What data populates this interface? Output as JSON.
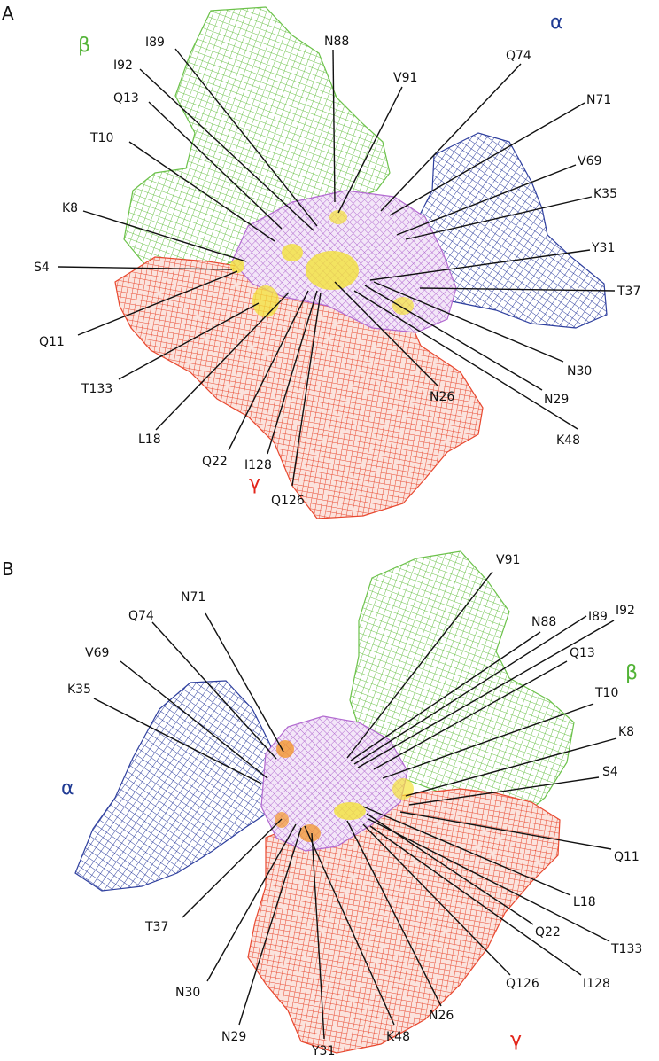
{
  "colors": {
    "alpha": "#2e3f9e",
    "beta": "#6cc24a",
    "gamma": "#e8482f",
    "core": "#b26ad0",
    "contact": "#f3e23a",
    "contact_b": "#f2952c",
    "label": "#111111",
    "alpha_text": "#1f3a93",
    "beta_text": "#52b336",
    "gamma_text": "#e3261b"
  },
  "panels": [
    {
      "letter": "A",
      "subunits": {
        "alpha": "α",
        "beta": "β",
        "gamma": "γ"
      },
      "residues": [
        "I89",
        "N88",
        "I92",
        "V91",
        "Q74",
        "Q13",
        "N71",
        "T10",
        "V69",
        "K35",
        "K8",
        "Y31",
        "S4",
        "T37",
        "Q11",
        "T133",
        "N30",
        "L18",
        "N26",
        "N29",
        "Q22",
        "I128",
        "K48",
        "Q126"
      ]
    },
    {
      "letter": "B",
      "subunits": {
        "alpha": "α",
        "beta": "β",
        "gamma": "γ"
      },
      "residues": [
        "V91",
        "N71",
        "N88",
        "I89",
        "Q74",
        "I92",
        "Q13",
        "V69",
        "K35",
        "T10",
        "K8",
        "S4",
        "Q11",
        "L18",
        "T37",
        "Q22",
        "T133",
        "Q126",
        "I128",
        "N30",
        "N26",
        "N29",
        "Y31",
        "K48"
      ]
    }
  ]
}
